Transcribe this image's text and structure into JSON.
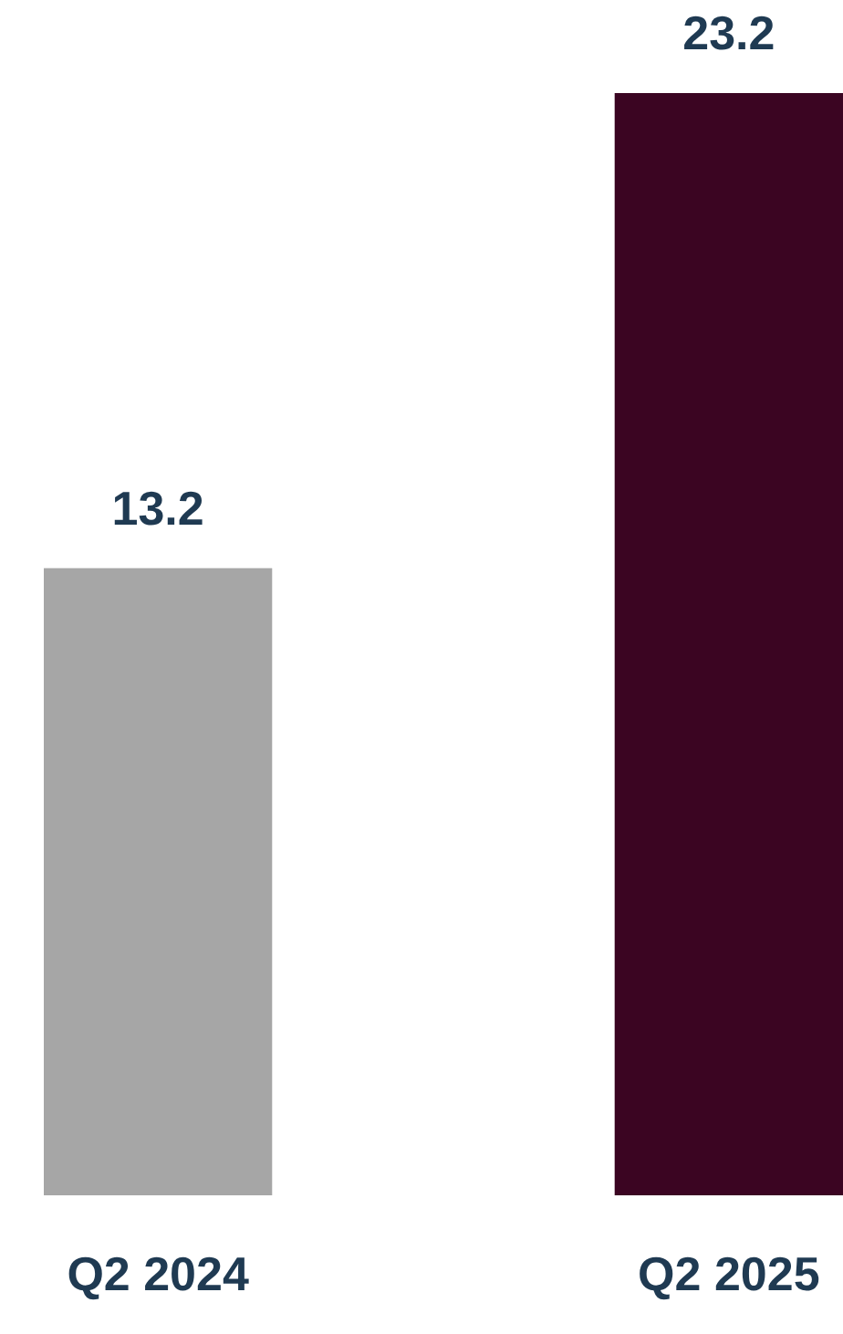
{
  "chart_data": {
    "type": "bar",
    "categories": [
      "Q2 2024",
      "Q2 2025"
    ],
    "values": [
      13.2,
      23.2
    ],
    "colors": [
      "#a6a6a6",
      "#3b0522"
    ],
    "data_labels": true
  }
}
